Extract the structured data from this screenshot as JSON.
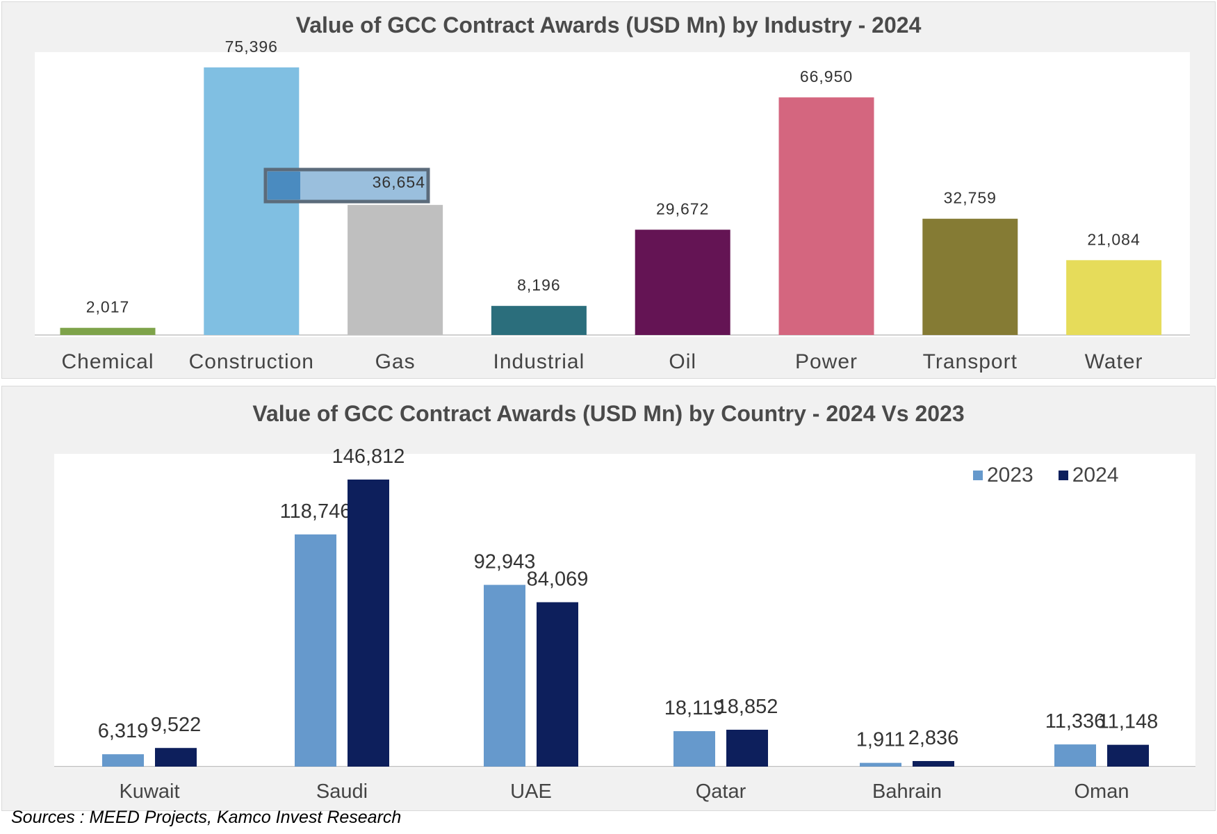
{
  "chart_data": [
    {
      "type": "bar",
      "title": "Value of GCC Contract Awards (USD Mn) by Industry - 2024",
      "xlabel": "",
      "ylabel": "",
      "categories": [
        "Chemical",
        "Construction",
        "Gas",
        "Industrial",
        "Oil",
        "Power",
        "Transport",
        "Water"
      ],
      "values": [
        2017,
        75396,
        36654,
        8196,
        29672,
        66950,
        32759,
        21084
      ],
      "value_labels": [
        "2,017",
        "75,396",
        "36,654",
        "8,196",
        "29,672",
        "66,950",
        "32,759",
        "21,084"
      ],
      "colors": [
        "#7ea34a",
        "#80bfe2",
        "#bfbfbf",
        "#2b6e7c",
        "#641454",
        "#d4667f",
        "#857b34",
        "#e6dc5a"
      ],
      "ylim": [
        0,
        80000
      ],
      "grid": false,
      "highlighted_label": "Gas"
    },
    {
      "type": "bar",
      "title": "Value of GCC Contract Awards (USD Mn) by Country - 2024 Vs 2023",
      "xlabel": "",
      "ylabel": "",
      "categories": [
        "Kuwait",
        "Saudi",
        "UAE",
        "Qatar",
        "Bahrain",
        "Oman"
      ],
      "series": [
        {
          "name": "2023",
          "color": "#6699cc",
          "values": [
            6319,
            118746,
            92943,
            18119,
            1911,
            11336
          ],
          "value_labels": [
            "6,319",
            "118,746",
            "92,943",
            "18,119",
            "1,911",
            "11,336"
          ]
        },
        {
          "name": "2024",
          "color": "#0d1f5c",
          "values": [
            9522,
            146812,
            84069,
            18852,
            2836,
            11148
          ],
          "value_labels": [
            "9,522",
            "146,812",
            "84,069",
            "18,852",
            "2,836",
            "11,148"
          ]
        }
      ],
      "ylim": [
        0,
        160000
      ],
      "grid": false,
      "legend": "top-right"
    }
  ],
  "source": "Sources : MEED Projects, Kamco Invest Research"
}
